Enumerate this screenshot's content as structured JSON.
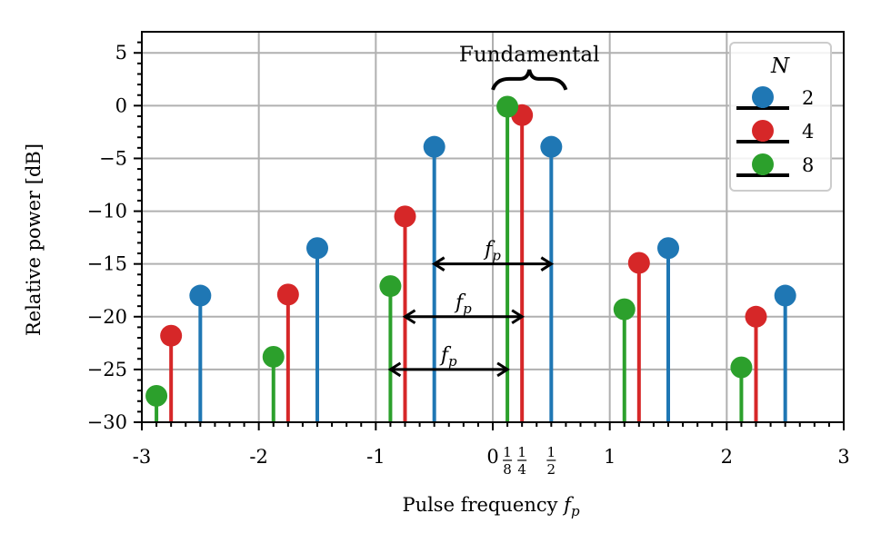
{
  "chart_data": {
    "type": "stem",
    "xlabel": "Pulse frequency",
    "xlabel_symbol": "f",
    "xlabel_subscript": "p",
    "ylabel": "Relative power [dB]",
    "xlim": [
      -3,
      3
    ],
    "ylim": [
      -30,
      7
    ],
    "grid": true,
    "x_ticks": [
      {
        "value": -3,
        "label": "-3"
      },
      {
        "value": -2,
        "label": "-2"
      },
      {
        "value": -1,
        "label": "-1"
      },
      {
        "value": 0,
        "label": "0"
      },
      {
        "value": 1,
        "label": "1"
      },
      {
        "value": 2,
        "label": "2"
      },
      {
        "value": 3,
        "label": "3"
      }
    ],
    "x_fraction_ticks": [
      {
        "value": 0.125,
        "num": "1",
        "den": "8"
      },
      {
        "value": 0.25,
        "num": "1",
        "den": "4"
      },
      {
        "value": 0.5,
        "num": "1",
        "den": "2"
      }
    ],
    "y_ticks": [
      {
        "value": 5,
        "label": "5"
      },
      {
        "value": 0,
        "label": "0"
      },
      {
        "value": -5,
        "label": "−5"
      },
      {
        "value": -10,
        "label": "−10"
      },
      {
        "value": -15,
        "label": "−15"
      },
      {
        "value": -20,
        "label": "−20"
      },
      {
        "value": -25,
        "label": "−25"
      },
      {
        "value": -30,
        "label": "−30"
      }
    ],
    "legend": {
      "title": "N",
      "placement": "top-right"
    },
    "series": [
      {
        "name": "2",
        "color": "#1f77b4",
        "x": [
          -2.5,
          -1.5,
          -0.5,
          0.5,
          1.5,
          2.5
        ],
        "y": [
          -18,
          -13.5,
          -3.9,
          -3.9,
          -13.5,
          -18
        ]
      },
      {
        "name": "4",
        "color": "#d62728",
        "x": [
          -2.75,
          -1.75,
          -0.75,
          0.25,
          1.25,
          2.25
        ],
        "y": [
          -21.8,
          -17.9,
          -10.5,
          -0.9,
          -14.9,
          -20
        ]
      },
      {
        "name": "8",
        "color": "#2ca02c",
        "x": [
          -2.875,
          -1.875,
          -0.875,
          0.125,
          1.125,
          2.125
        ],
        "y": [
          -27.5,
          -23.8,
          -17.1,
          -0.1,
          -19.3,
          -24.8
        ]
      }
    ],
    "annotations": {
      "fundamental": "Fundamental",
      "period_symbol": "f",
      "period_subscript": "p",
      "period_arrows": [
        {
          "from": -0.5,
          "to": 0.5,
          "y": -15
        },
        {
          "from": -0.75,
          "to": 0.25,
          "y": -20
        },
        {
          "from": -0.875,
          "to": 0.125,
          "y": -25
        }
      ]
    }
  }
}
